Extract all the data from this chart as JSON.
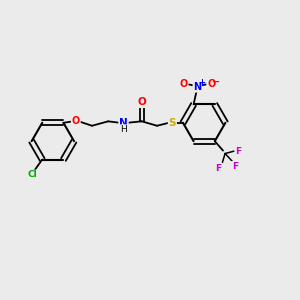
{
  "bg_color": "#ebebeb",
  "bond_color": "#000000",
  "atom_colors": {
    "O": "#ff0000",
    "N": "#0000ff",
    "S": "#ccaa00",
    "Cl": "#00aa00",
    "F": "#cc00cc",
    "C": "#000000",
    "H": "#000000"
  },
  "figsize": [
    3.0,
    3.0
  ],
  "dpi": 100,
  "xlim": [
    0,
    10
  ],
  "ylim": [
    0,
    10
  ]
}
